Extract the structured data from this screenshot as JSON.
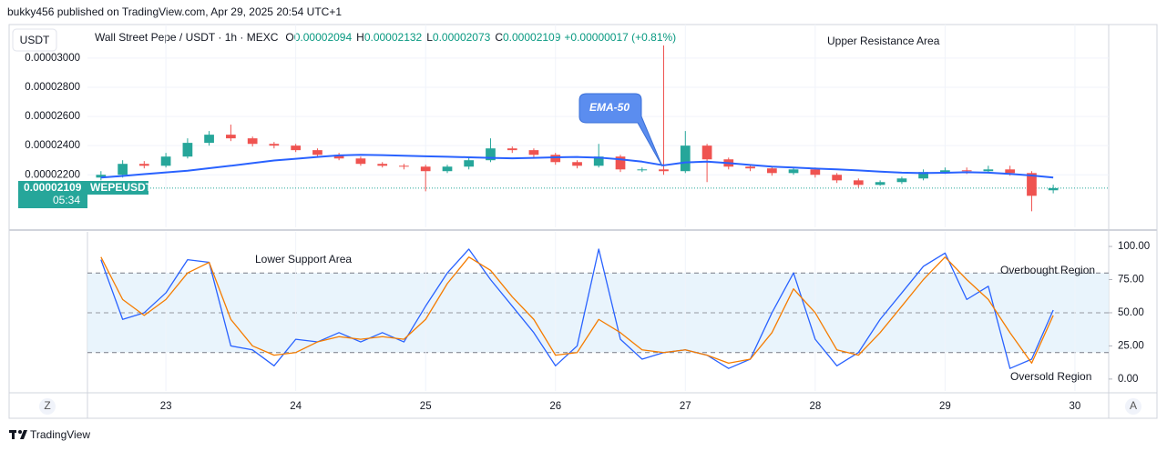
{
  "publisher_line": "bukky456 published on TradingView.com, Apr 29, 2025 20:54 UTC+1",
  "footer": {
    "brand": "TradingView",
    "left_button": "Z",
    "right_button": "A"
  },
  "chart_data": [
    {
      "type": "candlestick",
      "currency": "USDT",
      "title": "Wall Street Pepe / USDT · 1h · MEXC",
      "ohlc": [
        {
          "key": "O",
          "value": "0.00002094"
        },
        {
          "key": "H",
          "value": "0.00002132"
        },
        {
          "key": "L",
          "value": "0.00002073"
        },
        {
          "key": "C",
          "value": "0.00002109"
        }
      ],
      "change": "+0.00000017 (+0.81%)",
      "up_color": "#26a69a",
      "down_color": "#ef5350",
      "x": [
        22.5,
        22.667,
        22.833,
        23,
        23.167,
        23.333,
        23.5,
        23.667,
        23.833,
        24,
        24.167,
        24.333,
        24.5,
        24.667,
        24.833,
        25,
        25.167,
        25.333,
        25.5,
        25.667,
        25.833,
        26,
        26.167,
        26.333,
        26.5,
        26.667,
        26.833,
        27,
        27.167,
        27.333,
        27.5,
        27.667,
        27.833,
        28,
        28.167,
        28.333,
        28.5,
        28.667,
        28.833,
        29,
        29.167,
        29.333,
        29.5,
        29.667,
        29.833
      ],
      "open": [
        2.181e-05,
        2.2e-05,
        2.275e-05,
        2.262e-05,
        2.325e-05,
        2.419e-05,
        2.475e-05,
        2.45e-05,
        2.412e-05,
        2.4e-05,
        2.369e-05,
        2.337e-05,
        2.312e-05,
        2.275e-05,
        2.262e-05,
        2.256e-05,
        2.225e-05,
        2.256e-05,
        2.3e-05,
        2.381e-05,
        2.369e-05,
        2.337e-05,
        2.287e-05,
        2.262e-05,
        2.325e-05,
        2.237e-05,
        2.237e-05,
        2.225e-05,
        2.4e-05,
        2.306e-05,
        2.256e-05,
        2.244e-05,
        2.212e-05,
        2.237e-05,
        2.2e-05,
        2.162e-05,
        2.131e-05,
        2.15e-05,
        2.175e-05,
        2.219e-05,
        2.231e-05,
        2.225e-05,
        2.237e-05,
        2.212e-05,
        2.094e-05
      ],
      "high": [
        2.225e-05,
        2.3e-05,
        2.294e-05,
        2.35e-05,
        2.45e-05,
        2.5e-05,
        2.544e-05,
        2.462e-05,
        2.425e-05,
        2.412e-05,
        2.381e-05,
        2.35e-05,
        2.325e-05,
        2.287e-05,
        2.275e-05,
        2.269e-05,
        2.269e-05,
        2.325e-05,
        2.45e-05,
        2.394e-05,
        2.381e-05,
        2.35e-05,
        2.3e-05,
        2.412e-05,
        2.337e-05,
        2.25e-05,
        3.087e-05,
        2.5e-05,
        2.412e-05,
        2.318e-05,
        2.269e-05,
        2.256e-05,
        2.25e-05,
        2.25e-05,
        2.212e-05,
        2.175e-05,
        2.162e-05,
        2.187e-05,
        2.237e-05,
        2.25e-05,
        2.25e-05,
        2.262e-05,
        2.262e-05,
        2.225e-05,
        2.132e-05
      ],
      "low": [
        2.162e-05,
        2.181e-05,
        2.244e-05,
        2.25e-05,
        2.312e-05,
        2.4e-05,
        2.431e-05,
        2.394e-05,
        2.381e-05,
        2.356e-05,
        2.325e-05,
        2.3e-05,
        2.262e-05,
        2.25e-05,
        2.237e-05,
        2.087e-05,
        2.212e-05,
        2.237e-05,
        2.287e-05,
        2.35e-05,
        2.319e-05,
        2.269e-05,
        2.244e-05,
        2.25e-05,
        2.219e-05,
        2.219e-05,
        2.2e-05,
        2.212e-05,
        2.15e-05,
        2.237e-05,
        2.225e-05,
        2.194e-05,
        2.2e-05,
        2.181e-05,
        2.144e-05,
        2.112e-05,
        2.125e-05,
        2.137e-05,
        2.162e-05,
        2.206e-05,
        2.206e-05,
        2.212e-05,
        2.194e-05,
        1.95e-05,
        2.073e-05
      ],
      "close": [
        2.2e-05,
        2.275e-05,
        2.262e-05,
        2.325e-05,
        2.419e-05,
        2.475e-05,
        2.45e-05,
        2.412e-05,
        2.4e-05,
        2.369e-05,
        2.337e-05,
        2.312e-05,
        2.275e-05,
        2.262e-05,
        2.256e-05,
        2.225e-05,
        2.256e-05,
        2.3e-05,
        2.381e-05,
        2.369e-05,
        2.337e-05,
        2.287e-05,
        2.262e-05,
        2.325e-05,
        2.237e-05,
        2.237e-05,
        2.225e-05,
        2.4e-05,
        2.306e-05,
        2.256e-05,
        2.244e-05,
        2.212e-05,
        2.237e-05,
        2.2e-05,
        2.162e-05,
        2.131e-05,
        2.15e-05,
        2.175e-05,
        2.219e-05,
        2.231e-05,
        2.225e-05,
        2.237e-05,
        2.212e-05,
        2.056e-05,
        2.109e-05
      ],
      "series": [
        {
          "name": "EMA-50",
          "color": "#2962ff",
          "values": [
            2.181e-05,
            2.192e-05,
            2.205e-05,
            2.216e-05,
            2.228e-05,
            2.245e-05,
            2.262e-05,
            2.28e-05,
            2.298e-05,
            2.31e-05,
            2.322e-05,
            2.333e-05,
            2.337e-05,
            2.335e-05,
            2.331e-05,
            2.327e-05,
            2.324e-05,
            2.32e-05,
            2.316e-05,
            2.313e-05,
            2.316e-05,
            2.32e-05,
            2.322e-05,
            2.318e-05,
            2.306e-05,
            2.29e-05,
            2.265e-05,
            2.285e-05,
            2.29e-05,
            2.28e-05,
            2.268e-05,
            2.256e-05,
            2.25e-05,
            2.243e-05,
            2.237e-05,
            2.23e-05,
            2.222e-05,
            2.215e-05,
            2.212e-05,
            2.214e-05,
            2.218e-05,
            2.215e-05,
            2.206e-05,
            2.195e-05,
            2.181e-05
          ]
        }
      ],
      "last_price": 2.109e-05,
      "symbol": "WEPEUSDT",
      "countdown": "05:34",
      "annotations": [
        "Upper Resistance Area"
      ],
      "xlim": [
        22.396,
        30.26
      ],
      "ylim": [
        1.84e-05,
        3.23e-05
      ],
      "yticks": [
        {
          "value": 2.2e-05,
          "label": "0.00002200"
        },
        {
          "value": 2.4e-05,
          "label": "0.00002400"
        },
        {
          "value": 2.6e-05,
          "label": "0.00002600"
        },
        {
          "value": 2.8e-05,
          "label": "0.00002800"
        },
        {
          "value": 3e-05,
          "label": "0.00003000"
        }
      ],
      "grid": true
    },
    {
      "type": "stochastic",
      "x": [
        22.5,
        22.667,
        22.833,
        23,
        23.167,
        23.333,
        23.5,
        23.667,
        23.833,
        24,
        24.167,
        24.333,
        24.5,
        24.667,
        24.833,
        25,
        25.167,
        25.333,
        25.5,
        25.667,
        25.833,
        26,
        26.167,
        26.333,
        26.5,
        26.667,
        26.833,
        27,
        27.167,
        27.333,
        27.5,
        27.667,
        27.833,
        28,
        28.167,
        28.333,
        28.5,
        28.667,
        28.833,
        29,
        29.167,
        29.333,
        29.5,
        29.667,
        29.833
      ],
      "series": [
        {
          "color": "#2962ff",
          "values": [
            90,
            45,
            50,
            65,
            90,
            88,
            25,
            22,
            10,
            30,
            28,
            35,
            28,
            35,
            28,
            55,
            80,
            98,
            75,
            55,
            35,
            10,
            25,
            98,
            30,
            15,
            20,
            22,
            18,
            8,
            15,
            50,
            80,
            30,
            10,
            20,
            45,
            65,
            85,
            95,
            60,
            70,
            8,
            15,
            52
          ]
        },
        {
          "color": "#f57c00",
          "values": [
            92,
            60,
            48,
            60,
            80,
            88,
            45,
            25,
            18,
            20,
            28,
            32,
            30,
            32,
            30,
            45,
            72,
            92,
            82,
            62,
            45,
            18,
            20,
            45,
            35,
            22,
            20,
            22,
            18,
            12,
            15,
            35,
            68,
            50,
            22,
            18,
            35,
            55,
            75,
            92,
            75,
            60,
            35,
            12,
            48
          ]
        }
      ],
      "bands": [
        20,
        80
      ],
      "midline": 50,
      "annotations": [
        "Lower Support Area",
        "Overbought Region",
        "Oversold Region"
      ],
      "xlim": [
        22.396,
        30.26
      ],
      "xticks": [
        23,
        24,
        25,
        26,
        27,
        28,
        29,
        30
      ],
      "ylim": [
        -9,
        111
      ],
      "yticks": [
        {
          "value": 0,
          "label": "0.00"
        },
        {
          "value": 25,
          "label": "25.00"
        },
        {
          "value": 50,
          "label": "50.00"
        },
        {
          "value": 75,
          "label": "75.00"
        },
        {
          "value": 100,
          "label": "100.00"
        }
      ],
      "grid": true
    }
  ]
}
